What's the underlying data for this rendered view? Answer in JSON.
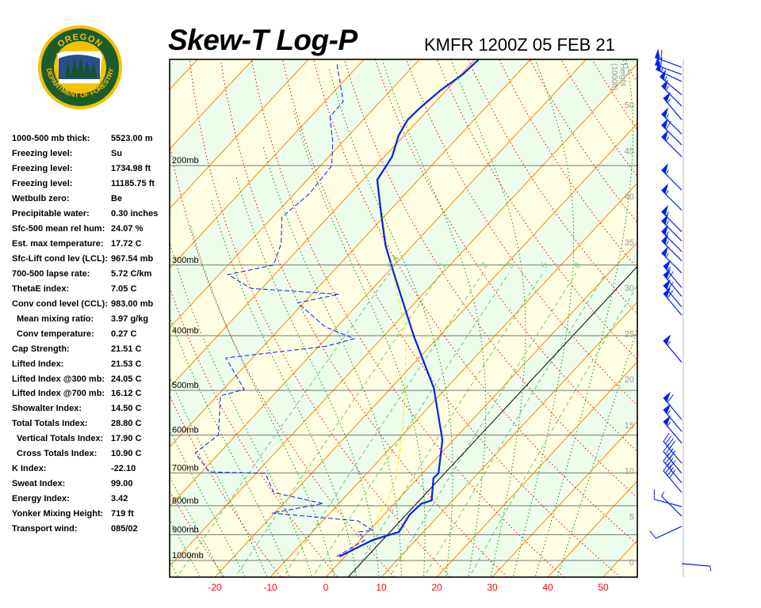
{
  "header": {
    "title": "Skew-T Log-P",
    "station": "KMFR 1200Z 05 FEB 21"
  },
  "logo": {
    "text_top": "OREGON",
    "text_bottom": "DEPARTMENT OF FORESTRY"
  },
  "indices": [
    {
      "label": "1000-500 mb thick:",
      "value": "5523.00 m",
      "indent": false
    },
    {
      "label": "Freezing level:",
      "value": "Su",
      "indent": false
    },
    {
      "label": "Freezing level:",
      "value": "1734.98 ft",
      "indent": false
    },
    {
      "label": "Freezing level:",
      "value": "11185.75 ft",
      "indent": false
    },
    {
      "label": "Wetbulb zero:",
      "value": "Be",
      "indent": false
    },
    {
      "label": "Precipitable water:",
      "value": "0.30 inches",
      "indent": false
    },
    {
      "label": "Sfc-500 mean rel hum:",
      "value": "24.07 %",
      "indent": false
    },
    {
      "label": "Est. max temperature:",
      "value": "17.72 C",
      "indent": false
    },
    {
      "label": "Sfc-Lift cond lev (LCL):",
      "value": "967.54 mb",
      "indent": false
    },
    {
      "label": "700-500 lapse rate:",
      "value": "5.72 C/km",
      "indent": false
    },
    {
      "label": "ThetaE index:",
      "value": "7.05 C",
      "indent": false
    },
    {
      "label": "Conv cond level (CCL):",
      "value": "983.00 mb",
      "indent": false
    },
    {
      "label": "Mean mixing ratio:",
      "value": "3.97 g/kg",
      "indent": true
    },
    {
      "label": "Conv temperature:",
      "value": "0.27 C",
      "indent": true
    },
    {
      "label": "Cap Strength:",
      "value": "21.51 C",
      "indent": false
    },
    {
      "label": "Lifted Index:",
      "value": "21.53 C",
      "indent": false
    },
    {
      "label": "Lifted Index @300 mb:",
      "value": "24.05 C",
      "indent": false
    },
    {
      "label": "Lifted Index @700 mb:",
      "value": "16.12 C",
      "indent": false
    },
    {
      "label": "Showalter Index:",
      "value": "14.50 C",
      "indent": false
    },
    {
      "label": "Total Totals Index:",
      "value": "28.80 C",
      "indent": false
    },
    {
      "label": "Vertical Totals Index:",
      "value": "17.90 C",
      "indent": true
    },
    {
      "label": "Cross Totals Index:",
      "value": "10.90 C",
      "indent": true
    },
    {
      "label": "K Index:",
      "value": "-22.10",
      "indent": false
    },
    {
      "label": "Sweat Index:",
      "value": "99.00",
      "indent": false
    },
    {
      "label": "Energy Index:",
      "value": "3.42",
      "indent": false
    },
    {
      "label": "Yonker Mixing Height:",
      "value": "719 ft",
      "indent": false
    },
    {
      "label": "Transport wind:",
      "value": "085/02",
      "indent": false
    }
  ],
  "chart_data": {
    "type": "skew-t log-p",
    "title": "Skew-T Log-P",
    "subtitle": "KMFR 1200Z 05 FEB 21",
    "x_axis": {
      "ticks": [
        -20,
        -10,
        0,
        10,
        20,
        30,
        40,
        50
      ]
    },
    "y_axis": {
      "scale": "log",
      "range_mb": [
        1070,
        130
      ],
      "levels": [
        200,
        300,
        400,
        500,
        600,
        700,
        800,
        900,
        1000
      ],
      "labels": [
        "200mb",
        "300mb",
        "400mb",
        "500mb",
        "600mb",
        "700mb",
        "800mb",
        "900mb",
        "1000mb"
      ]
    },
    "height_axis": {
      "label_line1": "Height",
      "label_line2": "(1000ft)",
      "ticks": [
        0,
        5,
        10,
        15,
        20,
        25,
        30,
        35,
        40,
        45,
        50
      ]
    },
    "mixing_ratio_labels": [
      "0.4",
      "1",
      "2",
      "3",
      "5",
      "8"
    ],
    "mixing_ratio_values": [
      0.4,
      1,
      2,
      3,
      5,
      8,
      12,
      20
    ],
    "isotherm_interval_c": 10,
    "grid": true,
    "colors": {
      "temperature": "#0022ee",
      "dewpoint": "#0022ee",
      "parcel": "#f0f000",
      "isotherm": "#ff8800",
      "dry_adiabat": "#ff0000",
      "moist_adiabat": "#009900",
      "mixing_ratio": "#66cc66",
      "band_a": "#fffde2",
      "band_b": "#eefcec",
      "tick_labels": "#ff0000",
      "height_labels": "#999999"
    },
    "profiles": {
      "temperature": [
        [
          984,
          -1.0
        ],
        [
          920,
          2.2
        ],
        [
          890,
          5.6
        ],
        [
          829,
          4.6
        ],
        [
          793,
          4.9
        ],
        [
          783,
          6.2
        ],
        [
          715,
          2.8
        ],
        [
          701,
          2.9
        ],
        [
          612,
          -2.0
        ],
        [
          495,
          -12.3
        ],
        [
          400,
          -24.7
        ],
        [
          353,
          -31.6
        ],
        [
          311,
          -38.6
        ],
        [
          277,
          -44.9
        ],
        [
          243,
          -51.1
        ],
        [
          212,
          -57.4
        ],
        [
          193,
          -58.6
        ],
        [
          177,
          -61.0
        ],
        [
          166,
          -62.0
        ],
        [
          157,
          -61.7
        ],
        [
          147,
          -61.0
        ],
        [
          138,
          -59.7
        ],
        [
          130,
          -59.3
        ]
      ],
      "dewpoint": [
        [
          984,
          -1.5
        ],
        [
          920,
          0.8
        ],
        [
          890,
          -1.7
        ],
        [
          885,
          0.6
        ],
        [
          851,
          -3.6
        ],
        [
          824,
          -20.5
        ],
        [
          793,
          -12.8
        ],
        [
          758,
          -23.6
        ],
        [
          701,
          -28.3
        ],
        [
          697,
          -38.7
        ],
        [
          645,
          -44.4
        ],
        [
          600,
          -43.2
        ],
        [
          511,
          -49.4
        ],
        [
          498,
          -46.2
        ],
        [
          438,
          -54.8
        ],
        [
          418,
          -38.8
        ],
        [
          405,
          -34.9
        ],
        [
          386,
          -42.1
        ],
        [
          350,
          -51.1
        ],
        [
          338,
          -45.1
        ],
        [
          330,
          -61.9
        ],
        [
          312,
          -68.4
        ],
        [
          300,
          -61.8
        ],
        [
          275,
          -64.0
        ],
        [
          247,
          -68.3
        ],
        [
          224,
          -67.3
        ],
        [
          200,
          -68.0
        ],
        [
          182,
          -71.7
        ],
        [
          164,
          -76.5
        ],
        [
          154,
          -76.7
        ],
        [
          132,
          -84.2
        ]
      ],
      "parcel": [
        [
          890,
          2.3
        ],
        [
          843,
          -0.7
        ],
        [
          777,
          -1.9
        ],
        [
          706,
          -4.4
        ],
        [
          591,
          -10.6
        ],
        [
          480,
          -18.7
        ],
        [
          401,
          -26.0
        ],
        [
          326,
          -36.3
        ],
        [
          277,
          -44.7
        ],
        [
          221,
          -55.4
        ]
      ]
    },
    "wind_barbs": [
      {
        "p": 134,
        "dir": 290,
        "spd": 60
      },
      {
        "p": 138,
        "dir": 290,
        "spd": 60
      },
      {
        "p": 142,
        "dir": 295,
        "spd": 55
      },
      {
        "p": 150,
        "dir": 310,
        "spd": 55
      },
      {
        "p": 157,
        "dir": 315,
        "spd": 55
      },
      {
        "p": 166,
        "dir": 320,
        "spd": 55
      },
      {
        "p": 176,
        "dir": 315,
        "spd": 55
      },
      {
        "p": 184,
        "dir": 315,
        "spd": 60
      },
      {
        "p": 193,
        "dir": 315,
        "spd": 55
      },
      {
        "p": 221,
        "dir": 315,
        "spd": 55
      },
      {
        "p": 240,
        "dir": 315,
        "spd": 55
      },
      {
        "p": 262,
        "dir": 315,
        "spd": 55
      },
      {
        "p": 272,
        "dir": 315,
        "spd": 55
      },
      {
        "p": 284,
        "dir": 315,
        "spd": 55
      },
      {
        "p": 295,
        "dir": 315,
        "spd": 55
      },
      {
        "p": 310,
        "dir": 315,
        "spd": 55
      },
      {
        "p": 329,
        "dir": 320,
        "spd": 55
      },
      {
        "p": 341,
        "dir": 320,
        "spd": 60
      },
      {
        "p": 356,
        "dir": 320,
        "spd": 60
      },
      {
        "p": 368,
        "dir": 320,
        "spd": 60
      },
      {
        "p": 446,
        "dir": 320,
        "spd": 55
      },
      {
        "p": 563,
        "dir": 320,
        "spd": 60
      },
      {
        "p": 591,
        "dir": 320,
        "spd": 55
      },
      {
        "p": 620,
        "dir": 320,
        "spd": 55
      },
      {
        "p": 673,
        "dir": 320,
        "spd": 40
      },
      {
        "p": 701,
        "dir": 320,
        "spd": 40
      },
      {
        "p": 729,
        "dir": 320,
        "spd": 40
      },
      {
        "p": 758,
        "dir": 320,
        "spd": 40
      },
      {
        "p": 803,
        "dir": 285,
        "spd": 10
      },
      {
        "p": 835,
        "dir": 315,
        "spd": 5
      },
      {
        "p": 870,
        "dir": 245,
        "spd": 10
      },
      {
        "p": 1013,
        "dir": 95,
        "spd": 5
      }
    ]
  }
}
